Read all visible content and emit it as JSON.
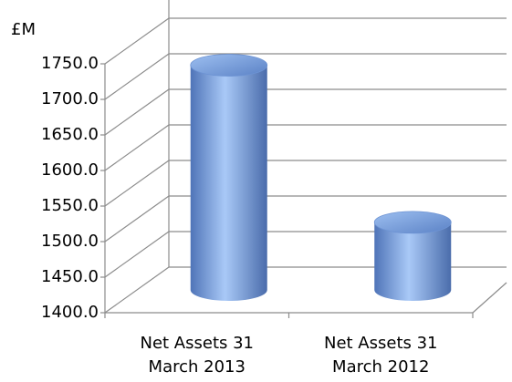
{
  "chart_data": {
    "type": "bar3d",
    "title": "£M",
    "categories": [
      "Net Assets 31 March 2013",
      "Net Assets 31 March 2012"
    ],
    "values": [
      1716,
      1495
    ],
    "color": "#7fa6e2",
    "ylim": [
      1400,
      1750
    ],
    "yticks": [
      {
        "value": 1400,
        "label": "1400.0"
      },
      {
        "value": 1450,
        "label": "1450.0"
      },
      {
        "value": 1500,
        "label": "1500.0"
      },
      {
        "value": 1550,
        "label": "1550.0"
      },
      {
        "value": 1600,
        "label": "1600.0"
      },
      {
        "value": 1650,
        "label": "1650.0"
      },
      {
        "value": 1700,
        "label": "1700.0"
      },
      {
        "value": 1750,
        "label": "1750.0"
      }
    ],
    "grid": true
  }
}
